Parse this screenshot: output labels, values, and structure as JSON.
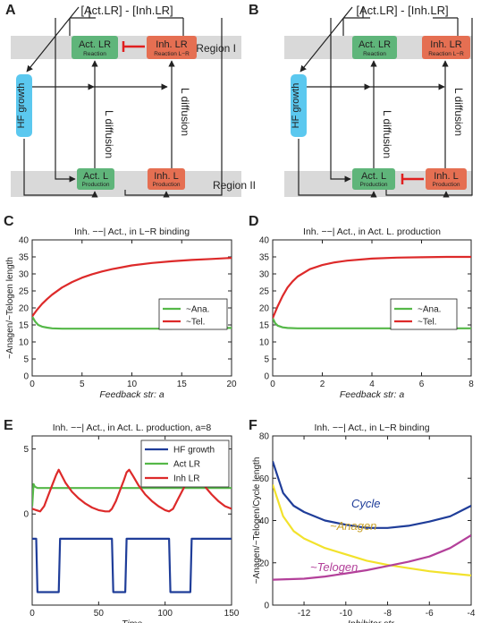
{
  "colors": {
    "green_box": "#5fb57a",
    "red_box": "#e56f52",
    "blue_box": "#5bc8ef",
    "region_band": "#d9d9d9",
    "inhibit": "#e02020",
    "series_green": "#55b848",
    "series_red": "#dd2a2a",
    "series_blue": "#1f3d99",
    "series_yellow": "#f2e22c",
    "series_magenta": "#b3409a"
  },
  "diagrams": [
    {
      "letter": "A",
      "top_label": "[Act.LR] - [Inh.LR]",
      "act_lr": "Act. LR",
      "act_lr_sub": "Reaction",
      "inh_lr": "Inh. LR",
      "inh_lr_sub": "Reaction L−R",
      "act_l": "Act. L",
      "act_l_sub": "Production",
      "inh_l": "Inh. L",
      "inh_l_sub": "Production",
      "hf": "HF growth",
      "diff1": "L diffusion",
      "diff2": "L diffusion",
      "region1": "Region I",
      "region2": "Region II",
      "inhibition_at": "top"
    },
    {
      "letter": "B",
      "top_label": "[Act.LR] - [Inh.LR]",
      "act_lr": "Act. LR",
      "act_lr_sub": "Reaction",
      "inh_lr": "Inh. LR",
      "inh_lr_sub": "Reaction L−R",
      "act_l": "Act. L",
      "act_l_sub": "Production",
      "inh_l": "Inh. L",
      "inh_l_sub": "Production",
      "hf": "HF growth",
      "diff1": "L diffusion",
      "diff2": "L diffusion",
      "inhibition_at": "bottom"
    }
  ],
  "chart_data": [
    {
      "letter": "C",
      "type": "line",
      "title": "Inh. −−| Act., in L−R binding",
      "xlabel": "Feedback str: a",
      "ylabel": "~Anagen/~Telogen length",
      "xlim": [
        0,
        20
      ],
      "ylim": [
        0,
        40
      ],
      "xticks": [
        0,
        5,
        10,
        15,
        20
      ],
      "yticks": [
        0,
        5,
        10,
        15,
        20,
        25,
        30,
        35,
        40
      ],
      "legend": "center-right",
      "series": [
        {
          "name": "~Ana.",
          "color": "#55b848",
          "x": [
            0,
            0.3,
            0.6,
            1,
            1.5,
            2,
            3,
            4,
            6,
            8,
            10,
            12,
            14,
            14.2,
            16,
            18,
            20
          ],
          "y": [
            17.5,
            16,
            15,
            14.5,
            14.2,
            14,
            13.9,
            13.9,
            13.9,
            13.9,
            13.9,
            13.9,
            13.9,
            14.1,
            14.1,
            14.1,
            14.1
          ]
        },
        {
          "name": "~Tel.",
          "color": "#dd2a2a",
          "x": [
            0,
            0.5,
            1,
            1.5,
            2,
            3,
            4,
            5,
            6,
            7,
            8,
            10,
            12,
            14,
            16,
            18,
            20
          ],
          "y": [
            17.5,
            19.5,
            21.2,
            22.6,
            23.9,
            26,
            27.6,
            28.9,
            29.9,
            30.7,
            31.4,
            32.5,
            33.2,
            33.7,
            34.1,
            34.4,
            34.7
          ]
        }
      ]
    },
    {
      "letter": "D",
      "type": "line",
      "title": "Inh. −−| Act., in Act. L. production",
      "xlabel": "Feedback str: a",
      "ylabel": "",
      "xlim": [
        0,
        8
      ],
      "ylim": [
        0,
        40
      ],
      "xticks": [
        0,
        2,
        4,
        6,
        8
      ],
      "yticks": [
        0,
        5,
        10,
        15,
        20,
        25,
        30,
        35,
        40
      ],
      "legend": "center-right",
      "series": [
        {
          "name": "~Ana.",
          "color": "#55b848",
          "x": [
            0,
            0.1,
            0.2,
            0.4,
            0.6,
            1,
            2,
            3,
            4,
            5,
            6,
            7,
            8
          ],
          "y": [
            17,
            15.5,
            14.8,
            14.3,
            14.1,
            14,
            14,
            14,
            14,
            14,
            14,
            14,
            14
          ]
        },
        {
          "name": "~Tel.",
          "color": "#dd2a2a",
          "x": [
            0,
            0.2,
            0.4,
            0.6,
            0.8,
            1,
            1.5,
            2,
            2.5,
            3,
            4,
            5,
            6,
            7,
            8
          ],
          "y": [
            17,
            20.5,
            23.5,
            26,
            27.8,
            29.2,
            31.4,
            32.6,
            33.4,
            33.9,
            34.5,
            34.8,
            34.9,
            35,
            35
          ]
        }
      ]
    },
    {
      "letter": "E",
      "type": "line",
      "title": "Inh. −−| Act., in Act. L. production, a=8",
      "xlabel": "Time",
      "ylabel": "",
      "xlim": [
        0,
        150
      ],
      "ylim": [
        -7,
        6
      ],
      "xticks": [
        0,
        50,
        100,
        150
      ],
      "yticks": [
        0,
        5
      ],
      "legend": "top-right",
      "series": [
        {
          "name": "HF growth",
          "color": "#1f3d99",
          "x": [
            0,
            3,
            4,
            8,
            9,
            20,
            21,
            60,
            61,
            65,
            66,
            70,
            71,
            103,
            104,
            108,
            109,
            119,
            120,
            150
          ],
          "y": [
            -1.9,
            -1.9,
            -6,
            -6,
            -6,
            -6,
            -1.9,
            -1.9,
            -6,
            -6,
            -6,
            -6,
            -1.9,
            -1.9,
            -6,
            -6,
            -6,
            -6,
            -1.9,
            -1.9
          ]
        },
        {
          "name": "Act LR",
          "color": "#55b848",
          "x": [
            0,
            1,
            2,
            4,
            10,
            20,
            40,
            60,
            80,
            100,
            120,
            150
          ],
          "y": [
            0.6,
            2.3,
            2.1,
            2,
            2,
            2,
            2,
            2,
            2,
            2,
            2,
            2
          ]
        },
        {
          "name": "Inh LR",
          "color": "#dd2a2a",
          "x": [
            0,
            3,
            6,
            9,
            12,
            15,
            18,
            20,
            22,
            25,
            30,
            35,
            40,
            45,
            50,
            55,
            58,
            60,
            63,
            66,
            69,
            71,
            73,
            76,
            80,
            85,
            90,
            95,
            100,
            103,
            106,
            110,
            114,
            118,
            120,
            122,
            125,
            130,
            135,
            140,
            145,
            150
          ],
          "y": [
            0.4,
            0.3,
            0.2,
            0.6,
            1.4,
            2.2,
            3.0,
            3.4,
            3.0,
            2.4,
            1.7,
            1.2,
            0.8,
            0.5,
            0.3,
            0.2,
            0.2,
            0.4,
            1.0,
            1.8,
            2.6,
            3.2,
            3.4,
            2.9,
            2.2,
            1.5,
            1.0,
            0.6,
            0.3,
            0.2,
            0.4,
            1.2,
            2.0,
            2.8,
            3.4,
            3.2,
            2.8,
            2.1,
            1.5,
            1.0,
            0.6,
            0.4
          ]
        }
      ]
    },
    {
      "letter": "F",
      "type": "line",
      "title": "Inh. −−| Act., in L−R binding",
      "xlabel": "Inhibitor str.",
      "ylabel": "~Anagen/~Telogen/Cycle length",
      "xlim": [
        -13.5,
        -4
      ],
      "ylim": [
        0,
        80
      ],
      "xticks": [
        -12,
        -10,
        -8,
        -6,
        -4
      ],
      "yticks": [
        0,
        20,
        40,
        60,
        80
      ],
      "legend": "none",
      "series": [
        {
          "name": "Cycle",
          "color": "#1f3d99",
          "label_color": "#1f3d99",
          "x": [
            -13.5,
            -13,
            -12.5,
            -12,
            -11,
            -10,
            -9,
            -8,
            -7,
            -6,
            -5,
            -4
          ],
          "y": [
            68,
            53,
            47,
            44,
            40,
            38,
            36.5,
            36.5,
            37.5,
            39.5,
            42,
            47
          ]
        },
        {
          "name": "~Anagen",
          "color": "#f2e22c",
          "label_color": "#c9a229",
          "x": [
            -13.5,
            -13,
            -12.5,
            -12,
            -11,
            -10,
            -9,
            -8,
            -7,
            -6,
            -5,
            -4
          ],
          "y": [
            57,
            42,
            35,
            31.5,
            27,
            24,
            21,
            19,
            17.5,
            16,
            15,
            14
          ]
        },
        {
          "name": "~Telogen",
          "color": "#b3409a",
          "label_color": "#b3409a",
          "x": [
            -13.5,
            -12,
            -11,
            -10,
            -9,
            -8,
            -7,
            -6,
            -5,
            -4
          ],
          "y": [
            12,
            12.5,
            13.5,
            15,
            16.5,
            18.5,
            20.5,
            23,
            27,
            33
          ]
        }
      ]
    }
  ]
}
